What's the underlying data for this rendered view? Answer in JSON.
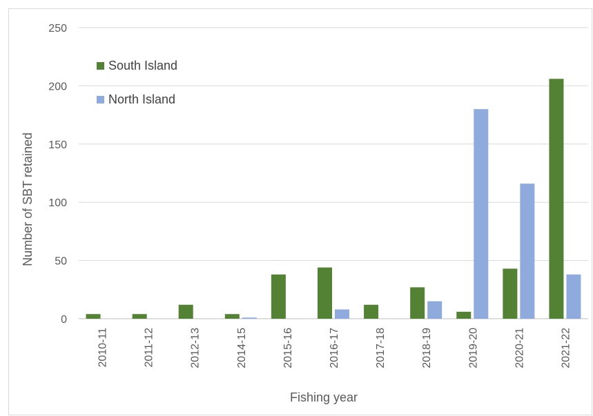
{
  "chart_data": {
    "type": "bar",
    "title": "",
    "xlabel": "Fishing year",
    "ylabel": "Number of SBT retained",
    "ylim": [
      0,
      250
    ],
    "yticks": [
      0,
      50,
      100,
      150,
      200,
      250
    ],
    "grid": true,
    "legend_position": "top-left",
    "categories": [
      "2010-11",
      "2011-12",
      "2012-13",
      "2014-15",
      "2015-16",
      "2016-17",
      "2017-18",
      "2018-19",
      "2019-20",
      "2020-21",
      "2021-22"
    ],
    "series": [
      {
        "name": "South Island",
        "color": "#548235",
        "values": [
          4,
          4,
          12,
          4,
          38,
          44,
          12,
          27,
          6,
          43,
          206
        ]
      },
      {
        "name": "North Island",
        "color": "#8faadc",
        "values": [
          0,
          0,
          0,
          1,
          0,
          8,
          0,
          15,
          180,
          116,
          38
        ]
      }
    ]
  }
}
